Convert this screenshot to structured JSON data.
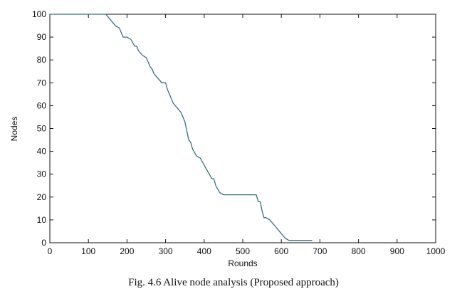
{
  "chart_data": {
    "type": "line",
    "title": "",
    "xlabel": "Rounds",
    "ylabel": "Nodes",
    "xlim": [
      0,
      1000
    ],
    "ylim": [
      0,
      100
    ],
    "xticks": [
      0,
      100,
      200,
      300,
      400,
      500,
      600,
      700,
      800,
      900,
      1000
    ],
    "yticks": [
      0,
      10,
      20,
      30,
      40,
      50,
      60,
      70,
      80,
      90,
      100
    ],
    "grid": false,
    "series": [
      {
        "color": "#3a6f7a",
        "x": [
          0,
          145,
          155,
          160,
          170,
          180,
          190,
          200,
          210,
          220,
          225,
          230,
          240,
          250,
          260,
          265,
          270,
          280,
          290,
          300,
          305,
          315,
          320,
          330,
          340,
          350,
          355,
          360,
          365,
          370,
          380,
          390,
          400,
          410,
          420,
          425,
          430,
          440,
          450,
          460,
          465,
          470,
          480,
          500,
          520,
          535,
          540,
          545,
          550,
          555,
          560,
          570,
          580,
          590,
          600,
          610,
          620,
          625,
          630,
          650,
          660,
          680
        ],
        "y": [
          100,
          100,
          98,
          97,
          95,
          94,
          90,
          90,
          89,
          86,
          86,
          84,
          82,
          81,
          77,
          76,
          74,
          72,
          70,
          70,
          67,
          63,
          61,
          59,
          57,
          53,
          49,
          45,
          44,
          41,
          38,
          37,
          34,
          31,
          28,
          28,
          25,
          22,
          21,
          21,
          21,
          21,
          21,
          21,
          21,
          21,
          18,
          18,
          14,
          11,
          11,
          10,
          8,
          6,
          4,
          2,
          1,
          1,
          1,
          1,
          1,
          1
        ]
      }
    ]
  },
  "caption": "Fig. 4.6 Alive node analysis (Proposed approach)"
}
